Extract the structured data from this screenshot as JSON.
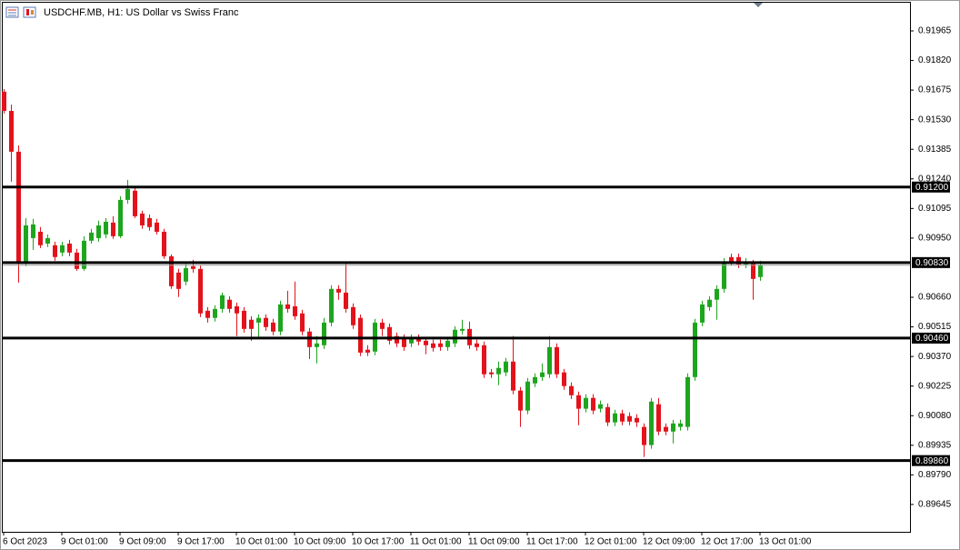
{
  "chart_data": {
    "type": "candlestick",
    "title": "USDCHF.MB, H1:  US Dollar vs Swiss Franc",
    "categories": [
      "6 Oct 2023",
      null,
      null,
      null,
      null,
      null,
      null,
      null,
      "9 Oct 01:00",
      null,
      null,
      null,
      null,
      null,
      null,
      null,
      "9 Oct 09:00",
      null,
      null,
      null,
      null,
      null,
      null,
      null,
      "9 Oct 17:00",
      null,
      null,
      null,
      null,
      null,
      null,
      null,
      "10 Oct 01:00",
      null,
      null,
      null,
      null,
      null,
      null,
      null,
      "10 Oct 09:00",
      null,
      null,
      null,
      null,
      null,
      null,
      null,
      "10 Oct 17:00",
      null,
      null,
      null,
      null,
      null,
      null,
      null,
      "11 Oct 01:00",
      null,
      null,
      null,
      null,
      null,
      null,
      null,
      "11 Oct 09:00",
      null,
      null,
      null,
      null,
      null,
      null,
      null,
      "11 Oct 17:00",
      null,
      null,
      null,
      null,
      null,
      null,
      null,
      "12 Oct 01:00",
      null,
      null,
      null,
      null,
      null,
      null,
      null,
      "12 Oct 09:00",
      null,
      null,
      null,
      null,
      null,
      null,
      null,
      "12 Oct 17:00",
      null,
      null,
      null,
      null,
      null,
      null,
      null,
      "13 Oct 01:00"
    ],
    "open": [
      0.91667,
      0.91573,
      0.91373,
      0.90826,
      0.9095,
      0.90981,
      0.90923,
      0.90915,
      0.90879,
      0.90923,
      0.90879,
      0.90799,
      0.90937,
      0.9095,
      0.90968,
      0.91026,
      0.90959,
      0.91137,
      0.91182,
      0.9107,
      0.91048,
      0.91026,
      0.90981,
      0.90861,
      0.90781,
      0.90737,
      0.90812,
      0.90799,
      0.90594,
      0.90559,
      0.90603,
      0.90648,
      0.90616,
      0.90594,
      0.9055,
      0.90536,
      0.90559,
      0.90536,
      0.90492,
      0.90625,
      0.90616,
      0.90581,
      0.90492,
      0.90416,
      0.90425,
      0.90536,
      0.90701,
      0.90683,
      0.90612,
      0.90559,
      0.90403,
      0.90394,
      0.90536,
      0.90514,
      0.9047,
      0.90461,
      0.90434,
      0.90461,
      0.90447,
      0.90434,
      0.90434,
      0.90416,
      0.90434,
      0.90496,
      0.90505,
      0.90434,
      0.90425,
      0.90292,
      0.90283,
      0.90292,
      0.90345,
      0.90203,
      0.90105,
      0.90238,
      0.90269,
      0.90283,
      0.90416,
      0.90292,
      0.90225,
      0.9018,
      0.90114,
      0.90167,
      0.90114,
      0.90122,
      0.90047,
      0.90091,
      0.90078,
      0.90069,
      0.90025,
      0.89936,
      0.90136,
      0.90025,
      0.90002,
      0.90025,
      0.90025,
      0.90269,
      0.90536,
      0.90612,
      0.90648,
      0.90701,
      0.90857,
      0.90857,
      0.90821,
      0.90826,
      0.90759
    ],
    "high": [
      0.9168,
      0.91604,
      0.91404,
      0.91048,
      0.91044,
      0.91004,
      0.90968,
      0.90932,
      0.90932,
      0.90941,
      0.90897,
      0.90959,
      0.90995,
      0.91035,
      0.91048,
      0.91057,
      0.91155,
      0.91235,
      0.91199,
      0.91084,
      0.91066,
      0.91044,
      0.90995,
      0.9087,
      0.90799,
      0.90826,
      0.90843,
      0.90817,
      0.90612,
      0.90621,
      0.90683,
      0.90665,
      0.90634,
      0.90612,
      0.90567,
      0.90576,
      0.90576,
      0.90554,
      0.90643,
      0.90692,
      0.90737,
      0.90599,
      0.9051,
      0.9047,
      0.90559,
      0.90719,
      0.90719,
      0.90826,
      0.9063,
      0.90576,
      0.90425,
      0.90554,
      0.90554,
      0.90532,
      0.90487,
      0.90478,
      0.90478,
      0.90478,
      0.90465,
      0.90452,
      0.90452,
      0.90465,
      0.90518,
      0.9055,
      0.90541,
      0.90452,
      0.90443,
      0.90309,
      0.90345,
      0.90363,
      0.9047,
      0.9022,
      0.90265,
      0.90287,
      0.90336,
      0.9047,
      0.90434,
      0.90309,
      0.90243,
      0.90198,
      0.90185,
      0.90185,
      0.90154,
      0.9014,
      0.90109,
      0.90109,
      0.90096,
      0.90087,
      0.90042,
      0.90167,
      0.90167,
      0.90042,
      0.9006,
      0.9006,
      0.90287,
      0.90554,
      0.90643,
      0.90665,
      0.90719,
      0.90852,
      0.90874,
      0.90874,
      0.90852,
      0.90843,
      0.90839
    ],
    "low": [
      0.9156,
      0.91226,
      0.90732,
      0.90812,
      0.90892,
      0.90901,
      0.90906,
      0.90839,
      0.90861,
      0.90861,
      0.9079,
      0.9079,
      0.90923,
      0.90932,
      0.9095,
      0.90946,
      0.9095,
      0.91119,
      0.91048,
      0.90995,
      0.90986,
      0.90968,
      0.90848,
      0.90701,
      0.90661,
      0.90719,
      0.90781,
      0.90563,
      0.90536,
      0.90541,
      0.90585,
      0.90585,
      0.9047,
      0.90487,
      0.90447,
      0.90461,
      0.90496,
      0.90474,
      0.90474,
      0.90585,
      0.9055,
      0.90474,
      0.90358,
      0.90336,
      0.90407,
      0.90518,
      0.90648,
      0.90585,
      0.90505,
      0.90372,
      0.90372,
      0.90376,
      0.9047,
      0.90429,
      0.90416,
      0.90398,
      0.90416,
      0.90425,
      0.90381,
      0.90394,
      0.90398,
      0.90398,
      0.90416,
      0.90478,
      0.90407,
      0.90398,
      0.90265,
      0.90265,
      0.90229,
      0.90274,
      0.90185,
      0.90025,
      0.90087,
      0.9022,
      0.90251,
      0.90265,
      0.90265,
      0.90207,
      0.90162,
      0.90033,
      0.90096,
      0.90087,
      0.90096,
      0.90029,
      0.90029,
      0.90033,
      0.90033,
      0.90025,
      0.89878,
      0.89918,
      0.89984,
      0.89984,
      0.89944,
      0.90007,
      0.90007,
      0.90251,
      0.90518,
      0.90594,
      0.9055,
      0.90683,
      0.90817,
      0.90803,
      0.90803,
      0.90648,
      0.90741
    ],
    "close": [
      0.91573,
      0.91373,
      0.90826,
      0.91012,
      0.91017,
      0.90915,
      0.9095,
      0.90857,
      0.90915,
      0.90879,
      0.90799,
      0.90937,
      0.90977,
      0.91012,
      0.9103,
      0.90959,
      0.91137,
      0.9119,
      0.91057,
      0.91012,
      0.91004,
      0.90981,
      0.90861,
      0.90714,
      0.90701,
      0.90803,
      0.90799,
      0.90581,
      0.90559,
      0.90603,
      0.9067,
      0.90603,
      0.90581,
      0.90505,
      0.90505,
      0.90559,
      0.90514,
      0.90492,
      0.90625,
      0.90603,
      0.90567,
      0.90492,
      0.90416,
      0.90434,
      0.90536,
      0.90701,
      0.90683,
      0.90603,
      0.90523,
      0.90389,
      0.90389,
      0.90536,
      0.90505,
      0.90447,
      0.90434,
      0.90416,
      0.90461,
      0.90443,
      0.90425,
      0.90412,
      0.90416,
      0.90447,
      0.90501,
      0.90505,
      0.90425,
      0.90416,
      0.90283,
      0.90283,
      0.90314,
      0.90345,
      0.90203,
      0.90105,
      0.90247,
      0.90269,
      0.90292,
      0.90416,
      0.90283,
      0.90225,
      0.9018,
      0.90114,
      0.90167,
      0.90105,
      0.90136,
      0.90047,
      0.90091,
      0.90051,
      0.90051,
      0.90047,
      0.89936,
      0.90149,
      0.90002,
      0.90002,
      0.90042,
      0.90042,
      0.90269,
      0.90536,
      0.90625,
      0.90648,
      0.90701,
      0.90826,
      0.90834,
      0.90821,
      0.90834,
      0.9075,
      0.90817
    ],
    "ylim": [
      0.89511,
      0.92103
    ],
    "yticks": [
      0.91965,
      {
        "value": 0.9182,
        "label": "0.91820"
      },
      0.91675,
      {
        "value": 0.9153,
        "label": "0.91530"
      },
      0.91385,
      {
        "value": 0.9124,
        "label": "0.91240"
      },
      0.91095,
      {
        "value": 0.9095,
        "label": "0.90950"
      },
      {
        "value": 0.9066,
        "label": "0.90660"
      },
      0.90515,
      {
        "value": 0.9037,
        "label": "0.90370"
      },
      0.90225,
      {
        "value": 0.9008,
        "label": "0.90080"
      },
      0.89935,
      {
        "value": 0.8979,
        "label": "0.89790"
      },
      0.89645
    ],
    "levels": [
      {
        "value": 0.912,
        "label": "0.91200"
      },
      {
        "value": 0.9083,
        "label": "0.90830"
      },
      {
        "value": 0.9046,
        "label": "0.90460"
      },
      {
        "value": 0.8986,
        "label": "0.89860"
      }
    ],
    "up_color": "#1ea51e",
    "down_color": "#e3121b",
    "level_color": "#000000",
    "grid": false
  }
}
